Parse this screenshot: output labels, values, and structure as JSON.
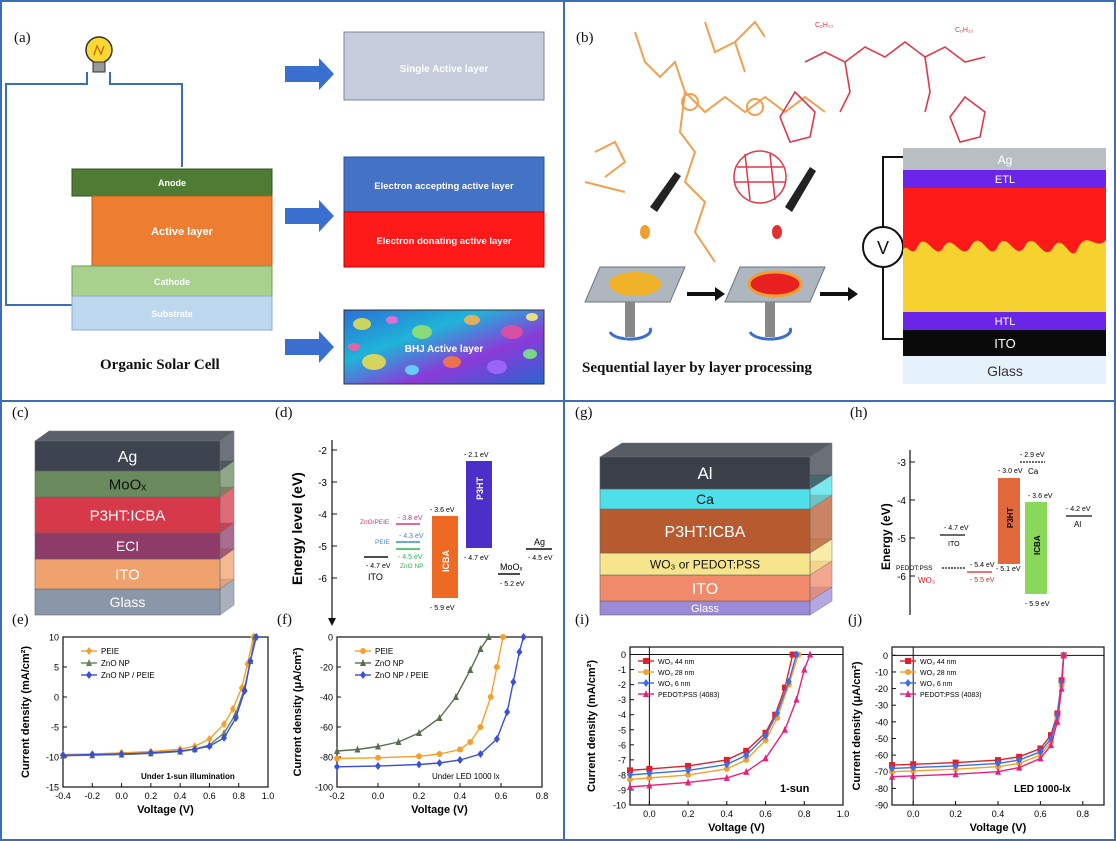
{
  "panels": {
    "a": {
      "label": "(a)",
      "layers": {
        "anode": "Anode",
        "active": "Active layer",
        "cathode": "Cathode",
        "substrate": "Substrate"
      },
      "types": {
        "single": "Single Active layer",
        "acceptor": "Electron accepting active layer",
        "donor": "Electron donating active layer",
        "bhj": "BHJ Active layer"
      },
      "caption": "Organic Solar Cell"
    },
    "b": {
      "label": "(b)",
      "stack": {
        "ag": "Ag",
        "etl": "ETL",
        "htl": "HTL",
        "ito": "ITO",
        "glass": "Glass"
      },
      "voltmeter": "V",
      "caption": "Sequential layer by layer processing"
    },
    "c": {
      "label": "(c)",
      "layers": [
        "Ag",
        "MoOₓ",
        "P3HT:ICBA",
        "ECI",
        "ITO",
        "Glass"
      ]
    },
    "d": {
      "label": "(d)",
      "ylabel": "Energy level (eV)",
      "ticks": [
        "-2",
        "-3",
        "-4",
        "-5",
        "-6"
      ],
      "levels": {
        "ito": "ITO",
        "ito_val": "- 4.7 eV",
        "zno_peie": "ZnO/PEIE",
        "zno_peie_val": "- 3.8 eV",
        "peie": "PEIE",
        "peie_val": "- 4.3 eV",
        "zno_np_val": "- 4.5 eV",
        "zno_np": "ZnO NP",
        "icba": "ICBA",
        "icba_top": "- 3.6 eV",
        "icba_bot": "- 5.9 eV",
        "p3ht": "P3HT",
        "p3ht_top": "- 2.1 eV",
        "p3ht_bot": "- 4.7 eV",
        "moox": "MoOₓ",
        "moox_val": "- 5.2 eV",
        "ag": "Ag",
        "ag_val": "- 4.5 eV"
      }
    },
    "e": {
      "label": "(e)",
      "note": "Under 1-sun illumination"
    },
    "f": {
      "label": "(f)",
      "note": "Under LED 1000 lx"
    },
    "g": {
      "label": "(g)",
      "layers": [
        "Al",
        "Ca",
        "P3HT:ICBA",
        "WO₃ or PEDOT:PSS",
        "ITO",
        "Glass"
      ]
    },
    "h": {
      "label": "(h)",
      "ylabel": "Energy (eV)",
      "ticks": [
        "-3",
        "-4",
        "-5",
        "-6"
      ],
      "levels": {
        "ito": "ITO",
        "ito_val": "- 4.7 eV",
        "pedot": "PEDOT:PSS",
        "pedot_val": "- 5.4 eV",
        "wo3": "WO₃",
        "wo3_val": "- 5.5 eV",
        "p3ht": "P3HT",
        "p3ht_top": "- 3.0 eV",
        "p3ht_bot": "- 5.1 eV",
        "icba": "ICBA",
        "icba_top": "- 3.6 eV",
        "icba_bot": "- 5.9 eV",
        "ca": "Ca",
        "ca_val": "- 2.9 eV",
        "al": "Al",
        "al_val": "- 4.2 eV"
      }
    },
    "i": {
      "label": "(i)",
      "note": "1-sun"
    },
    "j": {
      "label": "(j)",
      "note": "LED 1000-lx"
    }
  },
  "chart_data": [
    {
      "id": "e",
      "type": "line",
      "xlabel": "Voltage (V)",
      "ylabel": "Current density (mA/cm²)",
      "xlim": [
        -0.4,
        1.0
      ],
      "ylim": [
        -15,
        10
      ],
      "xticks": [
        -0.4,
        -0.2,
        0.0,
        0.2,
        0.4,
        0.6,
        0.8,
        1.0
      ],
      "yticks": [
        -15,
        -10,
        -5,
        0,
        5,
        10
      ],
      "series": [
        {
          "name": "PEIE",
          "color": "#f5a02d",
          "marker": "diamond",
          "points": [
            [
              -0.4,
              -9.6
            ],
            [
              -0.2,
              -9.5
            ],
            [
              0.0,
              -9.3
            ],
            [
              0.2,
              -9.1
            ],
            [
              0.4,
              -8.7
            ],
            [
              0.5,
              -8.2
            ],
            [
              0.6,
              -7.0
            ],
            [
              0.7,
              -4.5
            ],
            [
              0.76,
              -2.0
            ],
            [
              0.82,
              1.5
            ],
            [
              0.86,
              5.5
            ],
            [
              0.9,
              10
            ]
          ]
        },
        {
          "name": "ZnO NP",
          "color": "#6b7f5e",
          "marker": "triangle",
          "points": [
            [
              -0.4,
              -9.8
            ],
            [
              -0.2,
              -9.7
            ],
            [
              0.0,
              -9.6
            ],
            [
              0.2,
              -9.4
            ],
            [
              0.4,
              -9.1
            ],
            [
              0.5,
              -8.7
            ],
            [
              0.6,
              -8.0
            ],
            [
              0.7,
              -6.0
            ],
            [
              0.78,
              -2.8
            ],
            [
              0.84,
              1.5
            ],
            [
              0.88,
              6.0
            ],
            [
              0.91,
              10
            ]
          ]
        },
        {
          "name": "ZnO NP / PEIE",
          "color": "#3a4fd8",
          "marker": "diamond",
          "points": [
            [
              -0.4,
              -9.7
            ],
            [
              -0.2,
              -9.6
            ],
            [
              0.0,
              -9.5
            ],
            [
              0.2,
              -9.3
            ],
            [
              0.4,
              -9.0
            ],
            [
              0.5,
              -8.7
            ],
            [
              0.6,
              -8.2
            ],
            [
              0.7,
              -6.8
            ],
            [
              0.78,
              -3.5
            ],
            [
              0.84,
              1.0
            ],
            [
              0.88,
              6.0
            ],
            [
              0.92,
              10
            ]
          ]
        }
      ]
    },
    {
      "id": "f",
      "type": "line",
      "xlabel": "Voltage (V)",
      "ylabel": "Current density (μA/cm²)",
      "xlim": [
        -0.2,
        0.8
      ],
      "ylim": [
        -100,
        0
      ],
      "xticks": [
        -0.2,
        0.0,
        0.2,
        0.4,
        0.6,
        0.8
      ],
      "yticks": [
        -100,
        -80,
        -60,
        -40,
        -20,
        0
      ],
      "series": [
        {
          "name": "PEIE",
          "color": "#f5a02d",
          "marker": "circle",
          "points": [
            [
              -0.2,
              -81
            ],
            [
              0.0,
              -80.5
            ],
            [
              0.2,
              -79.5
            ],
            [
              0.3,
              -78
            ],
            [
              0.4,
              -75
            ],
            [
              0.45,
              -70
            ],
            [
              0.5,
              -60
            ],
            [
              0.55,
              -40
            ],
            [
              0.58,
              -20
            ],
            [
              0.61,
              0
            ]
          ]
        },
        {
          "name": "ZnO NP",
          "color": "#5a6e4e",
          "marker": "triangle",
          "points": [
            [
              -0.2,
              -76
            ],
            [
              -0.1,
              -75
            ],
            [
              0.0,
              -73
            ],
            [
              0.1,
              -70
            ],
            [
              0.2,
              -64
            ],
            [
              0.3,
              -54
            ],
            [
              0.38,
              -40
            ],
            [
              0.45,
              -22
            ],
            [
              0.5,
              -8
            ],
            [
              0.54,
              0
            ]
          ]
        },
        {
          "name": "ZnO NP / PEIE",
          "color": "#3a4fd8",
          "marker": "diamond",
          "points": [
            [
              -0.2,
              -86.5
            ],
            [
              0.0,
              -86
            ],
            [
              0.2,
              -85
            ],
            [
              0.3,
              -84
            ],
            [
              0.4,
              -82
            ],
            [
              0.5,
              -78
            ],
            [
              0.58,
              -68
            ],
            [
              0.63,
              -50
            ],
            [
              0.66,
              -30
            ],
            [
              0.69,
              -10
            ],
            [
              0.71,
              0
            ]
          ]
        }
      ]
    },
    {
      "id": "i",
      "type": "line",
      "xlabel": "Voltage (V)",
      "ylabel": "Current density (mA/cm²)",
      "xlim": [
        -0.1,
        1.0
      ],
      "ylim": [
        -10,
        0.5
      ],
      "xticks": [
        0.0,
        0.2,
        0.4,
        0.6,
        0.8,
        1.0
      ],
      "yticks": [
        0,
        -1,
        -2,
        -3,
        -4,
        -5,
        -6,
        -7,
        -8,
        -9,
        -10
      ],
      "series": [
        {
          "name": "WO₃ 44 nm",
          "color": "#e0202a",
          "marker": "square",
          "points": [
            [
              -0.1,
              -7.7
            ],
            [
              0.0,
              -7.6
            ],
            [
              0.2,
              -7.4
            ],
            [
              0.4,
              -7.0
            ],
            [
              0.5,
              -6.4
            ],
            [
              0.6,
              -5.2
            ],
            [
              0.65,
              -4.0
            ],
            [
              0.7,
              -2.2
            ],
            [
              0.74,
              0
            ]
          ]
        },
        {
          "name": "WO₃ 28 nm",
          "color": "#f5a02d",
          "marker": "circle",
          "points": [
            [
              -0.1,
              -8.3
            ],
            [
              0.0,
              -8.2
            ],
            [
              0.2,
              -8.0
            ],
            [
              0.4,
              -7.6
            ],
            [
              0.5,
              -7.0
            ],
            [
              0.6,
              -5.7
            ],
            [
              0.66,
              -4.2
            ],
            [
              0.72,
              -2.0
            ],
            [
              0.77,
              0
            ]
          ]
        },
        {
          "name": "WO₃ 6 nm",
          "color": "#3a6ee8",
          "marker": "diamond",
          "points": [
            [
              -0.1,
              -8.0
            ],
            [
              0.0,
              -7.9
            ],
            [
              0.2,
              -7.7
            ],
            [
              0.4,
              -7.3
            ],
            [
              0.5,
              -6.7
            ],
            [
              0.6,
              -5.4
            ],
            [
              0.66,
              -3.9
            ],
            [
              0.72,
              -1.8
            ],
            [
              0.76,
              0
            ]
          ]
        },
        {
          "name": "PEDOT:PSS (4083)",
          "color": "#e8207a",
          "marker": "triangle",
          "points": [
            [
              -0.1,
              -8.8
            ],
            [
              0.0,
              -8.7
            ],
            [
              0.2,
              -8.5
            ],
            [
              0.4,
              -8.2
            ],
            [
              0.5,
              -7.8
            ],
            [
              0.6,
              -6.9
            ],
            [
              0.7,
              -5.0
            ],
            [
              0.76,
              -3.0
            ],
            [
              0.8,
              -1.0
            ],
            [
              0.83,
              0
            ]
          ]
        }
      ]
    },
    {
      "id": "j",
      "type": "line",
      "xlabel": "Voltage (V)",
      "ylabel": "Current density (μA/cm²)",
      "xlim": [
        -0.1,
        0.9
      ],
      "ylim": [
        -90,
        5
      ],
      "xticks": [
        0.0,
        0.2,
        0.4,
        0.6,
        0.8
      ],
      "yticks": [
        0,
        -10,
        -20,
        -30,
        -40,
        -50,
        -60,
        -70,
        -80,
        -90
      ],
      "series": [
        {
          "name": "WO₃ 44 nm",
          "color": "#e0202a",
          "marker": "square",
          "points": [
            [
              -0.1,
              -66
            ],
            [
              0.0,
              -65.5
            ],
            [
              0.2,
              -64.5
            ],
            [
              0.4,
              -63
            ],
            [
              0.5,
              -61
            ],
            [
              0.6,
              -56
            ],
            [
              0.65,
              -48
            ],
            [
              0.68,
              -35
            ],
            [
              0.7,
              -15
            ],
            [
              0.71,
              0
            ]
          ]
        },
        {
          "name": "WO₃ 28 nm",
          "color": "#f5a02d",
          "marker": "circle",
          "points": [
            [
              -0.1,
              -70
            ],
            [
              0.0,
              -69.5
            ],
            [
              0.2,
              -68.5
            ],
            [
              0.4,
              -67
            ],
            [
              0.5,
              -65
            ],
            [
              0.6,
              -60
            ],
            [
              0.65,
              -52
            ],
            [
              0.68,
              -38
            ],
            [
              0.7,
              -18
            ],
            [
              0.71,
              0
            ]
          ]
        },
        {
          "name": "WO₃ 6 nm",
          "color": "#3a6ee8",
          "marker": "diamond",
          "points": [
            [
              -0.1,
              -68
            ],
            [
              0.0,
              -67.5
            ],
            [
              0.2,
              -66.5
            ],
            [
              0.4,
              -65
            ],
            [
              0.5,
              -63
            ],
            [
              0.6,
              -58
            ],
            [
              0.65,
              -50
            ],
            [
              0.68,
              -36
            ],
            [
              0.7,
              -16
            ],
            [
              0.71,
              0
            ]
          ]
        },
        {
          "name": "PEDOT:PSS (4083)",
          "color": "#e8207a",
          "marker": "triangle",
          "points": [
            [
              -0.1,
              -73
            ],
            [
              0.0,
              -72.5
            ],
            [
              0.2,
              -71.5
            ],
            [
              0.4,
              -70
            ],
            [
              0.5,
              -67.5
            ],
            [
              0.6,
              -62
            ],
            [
              0.65,
              -54
            ],
            [
              0.68,
              -40
            ],
            [
              0.7,
              -20
            ],
            [
              0.71,
              0
            ]
          ]
        }
      ]
    }
  ]
}
